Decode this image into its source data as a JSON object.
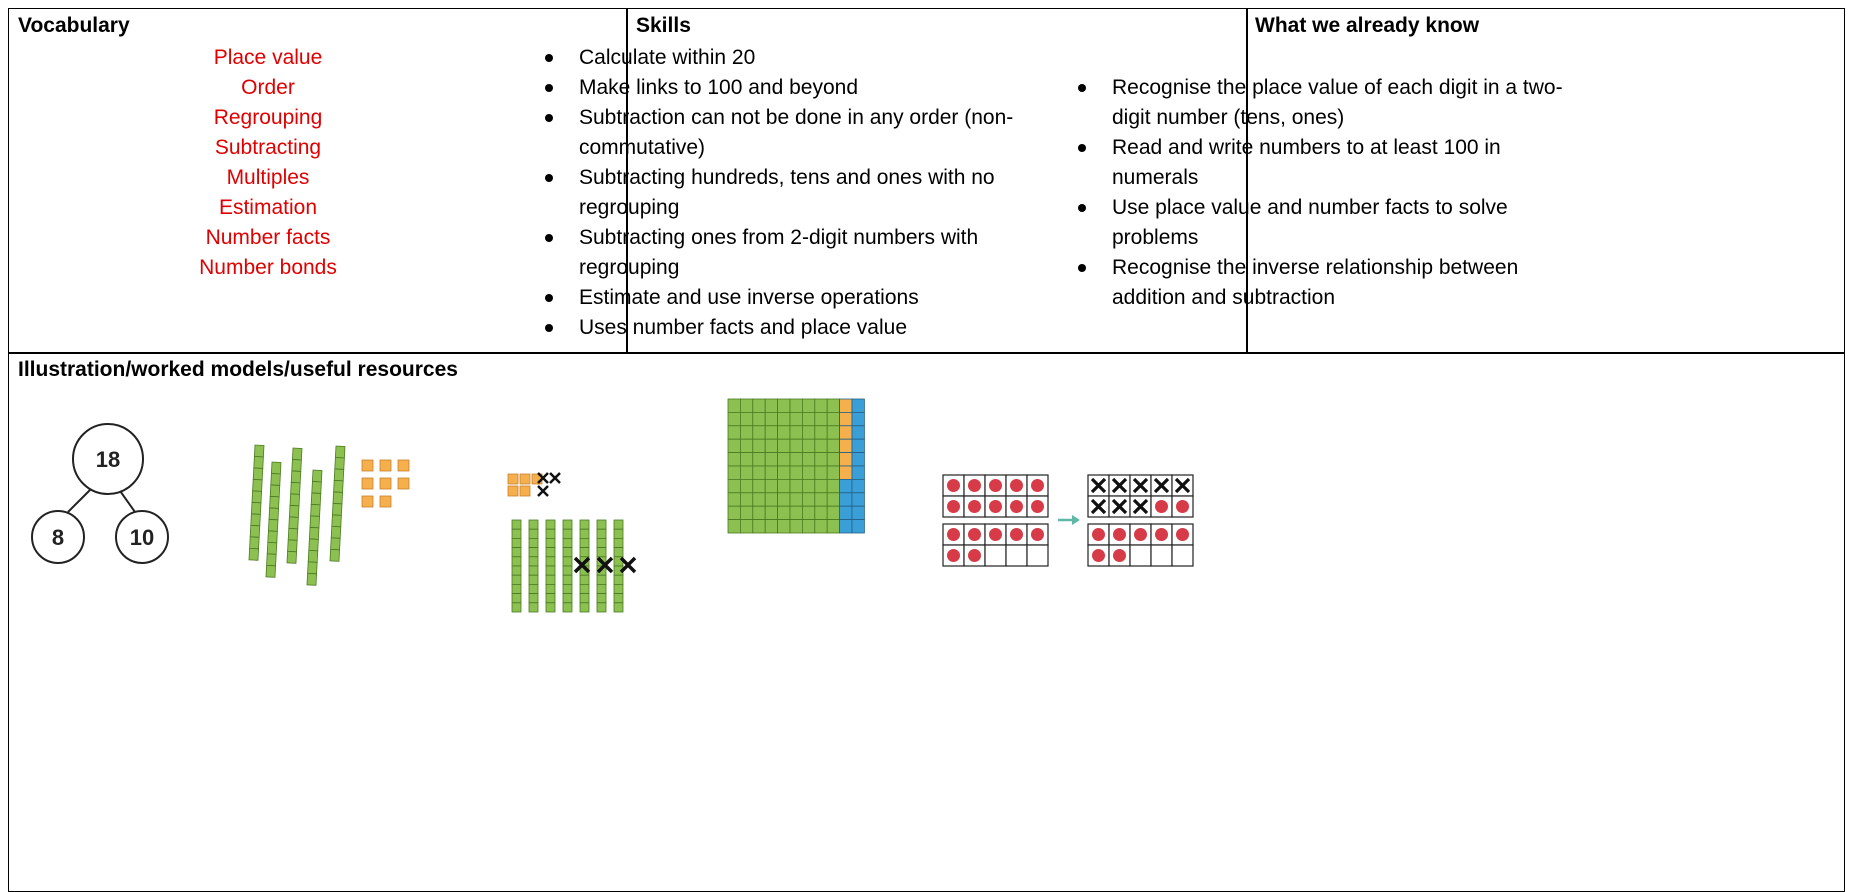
{
  "vocabulary": {
    "heading": "Vocabulary",
    "words": [
      "Place value",
      "Order",
      "Regrouping",
      "Subtracting",
      "Multiples",
      "Estimation",
      "Number facts",
      "Number bonds"
    ]
  },
  "skills": {
    "heading": "Skills",
    "items": [
      "Calculate within 20",
      "Make links to 100 and beyond",
      "Subtraction can not be done in any order (non-commutative)",
      "Subtracting hundreds, tens and ones with no regrouping",
      "Subtracting ones from 2-digit numbers with regrouping",
      "Estimate and use inverse operations",
      "Uses number facts and place value"
    ]
  },
  "known": {
    "heading": "What we already know",
    "items": [
      "Recognise the place value of each digit in a two-digit number (tens, ones)",
      "Read and write numbers to at least 100 in numerals",
      "Use place value and number facts to solve problems",
      "Recognise the inverse relationship between addition and subtraction"
    ]
  },
  "illustration": {
    "heading": "Illustration/worked models/useful resources",
    "part_whole": {
      "whole": "18",
      "parts": [
        "8",
        "10"
      ]
    }
  }
}
